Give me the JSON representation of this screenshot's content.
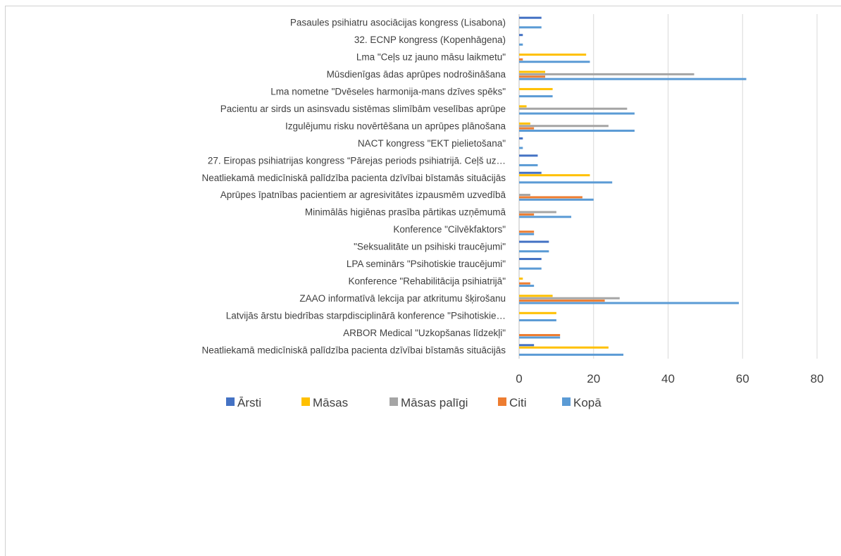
{
  "chart_data": {
    "type": "bar",
    "orientation": "horizontal",
    "title": "",
    "xlabel": "",
    "ylabel": "",
    "xlim": [
      0,
      80
    ],
    "x_ticks": [
      "0",
      "20",
      "40",
      "60",
      "80"
    ],
    "grid": true,
    "legend_position": "bottom",
    "categories": [
      "Pasaules psihiatru asociācijas kongress (Lisabona)",
      "32. ECNP kongress (Kopenhāgena)",
      "Lma \"Ceļs uz jauno māsu laikmetu\"",
      "Mūsdienīgas ādas aprūpes nodrošināšana",
      "Lma nometne \"Dvēseles harmonija-mans dzīves spēks\"",
      "Pacientu ar sirds un asinsvadu sistēmas slimībām veselības aprūpe",
      "Izgulējumu risku novērtēšana un aprūpes plānošana",
      "NACT kongress \"EKT pielietošana\"",
      "27. Eiropas psihiatrijas kongress “Pārejas periods psihiatrijā. Ceļš uz…",
      "Neatliekamā medicīniskā palīdzība pacienta dzīvībai bīstamās situācijās",
      "Aprūpes īpatnības pacientiem ar agresivitātes izpausmēm uzvedībā",
      "Minimālās higiēnas prasība pārtikas uzņēmumā",
      "Konference \"Cilvēkfaktors\"",
      "\"Seksualitāte un psihiski traucējumi\"",
      "LPA seminārs \"Psihotiskie traucējumi\"",
      "Konference \"Rehabilitācija psihiatrijā\"",
      "ZAAO informatīvā lekcija par atkritumu šķirošanu",
      "Latvijās ārstu biedrības starpdisciplinārā konference \"Psihotiskie…",
      "ARBOR Medical \"Uzkopšanas līdzekļi\"",
      "Neatliekamā medicīniskā palīdzība pacienta dzīvībai bīstamās situācijās"
    ],
    "series": [
      {
        "name": "Ārsti",
        "color": "#4472C4",
        "values": [
          6,
          1,
          0,
          0,
          0,
          0,
          0,
          1,
          5,
          6,
          0,
          0,
          0,
          8,
          6,
          0,
          0,
          0,
          0,
          4
        ]
      },
      {
        "name": "Māsas",
        "color": "#FFC000",
        "values": [
          0,
          0,
          18,
          7,
          9,
          2,
          3,
          0,
          0,
          19,
          0,
          0,
          0,
          0,
          0,
          1,
          9,
          10,
          0,
          24
        ]
      },
      {
        "name": "Māsas palīgi",
        "color": "#A5A5A5",
        "values": [
          0,
          0,
          0,
          47,
          0,
          29,
          24,
          0,
          0,
          0,
          3,
          10,
          0,
          0,
          0,
          0,
          27,
          0,
          0,
          0
        ]
      },
      {
        "name": "Citi",
        "color": "#ED7D31",
        "values": [
          0,
          0,
          1,
          7,
          0,
          0,
          4,
          0,
          0,
          0,
          17,
          4,
          4,
          0,
          0,
          3,
          23,
          0,
          11,
          0
        ]
      },
      {
        "name": "Kopā",
        "color": "#5B9BD5",
        "values": [
          6,
          1,
          19,
          61,
          9,
          31,
          31,
          1,
          5,
          25,
          20,
          14,
          4,
          8,
          6,
          4,
          59,
          10,
          11,
          28
        ]
      }
    ]
  }
}
